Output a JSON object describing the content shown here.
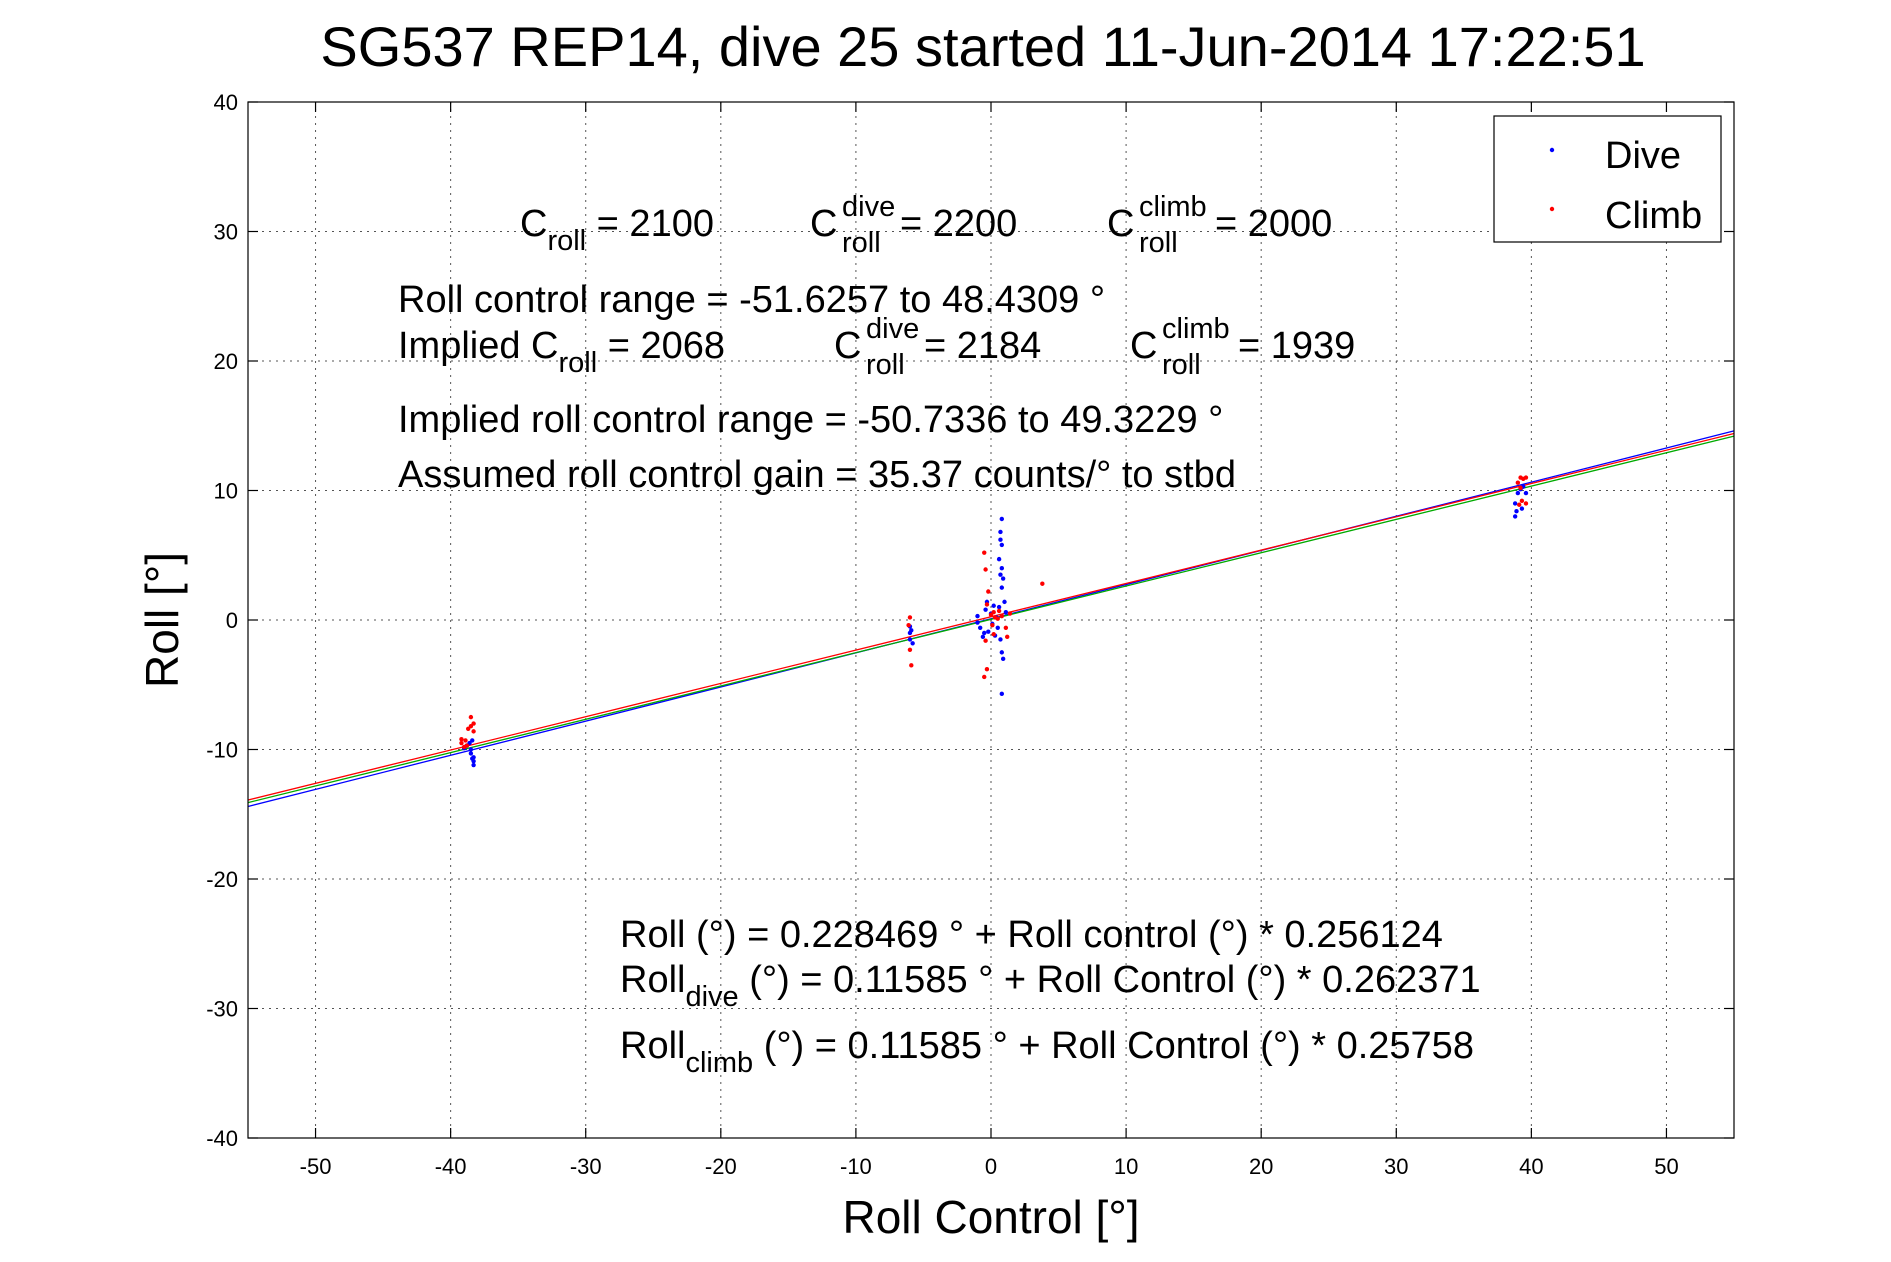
{
  "chart_data": {
    "type": "scatter",
    "title": "SG537 REP14, dive 25 started 11-Jun-2014 17:22:51",
    "xlabel": "Roll Control [°]",
    "ylabel": "Roll [°]",
    "xlim": [
      -55,
      55
    ],
    "ylim": [
      -40,
      40
    ],
    "xticks": [
      -50,
      -40,
      -30,
      -20,
      -10,
      0,
      10,
      20,
      30,
      40,
      50
    ],
    "yticks": [
      -40,
      -30,
      -20,
      -10,
      0,
      10,
      20,
      30,
      40
    ],
    "xtick_labels": [
      "-50",
      "-40",
      "-30",
      "-20",
      "-10",
      "0",
      "10",
      "20",
      "30",
      "40",
      "50"
    ],
    "ytick_labels": [
      "-40",
      "-30",
      "-20",
      "-10",
      "0",
      "10",
      "20",
      "30",
      "40"
    ],
    "grid": true,
    "legend": {
      "placement": "top-right",
      "entries": [
        "Dive",
        "Climb"
      ]
    },
    "series": [
      {
        "name": "Dive",
        "color": "#0000ff",
        "points": [
          [
            -38.5,
            -10.0
          ],
          [
            -38.5,
            -10.3
          ],
          [
            -38.3,
            -10.6
          ],
          [
            -38.3,
            -10.9
          ],
          [
            -38.3,
            -11.2
          ],
          [
            -38.8,
            -9.7
          ],
          [
            -39.0,
            -9.9
          ],
          [
            -38.4,
            -9.3
          ],
          [
            -38.6,
            -9.5
          ],
          [
            -38.4,
            -10.7
          ],
          [
            -6.0,
            -0.5
          ],
          [
            -6.0,
            -1.0
          ],
          [
            -6.0,
            -1.5
          ],
          [
            -5.9,
            -0.8
          ],
          [
            -5.8,
            -1.8
          ],
          [
            -1.0,
            -0.2
          ],
          [
            -1.0,
            0.3
          ],
          [
            -0.8,
            -0.6
          ],
          [
            -0.5,
            -1.0
          ],
          [
            -0.6,
            -1.3
          ],
          [
            -0.4,
            0.8
          ],
          [
            -0.3,
            1.4
          ],
          [
            -0.2,
            -0.9
          ],
          [
            0.0,
            0.5
          ],
          [
            0.1,
            -0.3
          ],
          [
            0.2,
            1.1
          ],
          [
            0.3,
            -1.2
          ],
          [
            0.4,
            0.2
          ],
          [
            0.6,
            1.0
          ],
          [
            0.5,
            -0.6
          ],
          [
            0.8,
            7.8
          ],
          [
            0.7,
            6.8
          ],
          [
            0.7,
            6.2
          ],
          [
            0.8,
            5.8
          ],
          [
            0.6,
            4.7
          ],
          [
            0.8,
            4.0
          ],
          [
            0.7,
            3.5
          ],
          [
            0.9,
            3.2
          ],
          [
            0.8,
            2.5
          ],
          [
            0.7,
            -1.5
          ],
          [
            0.8,
            -2.5
          ],
          [
            0.9,
            -3.0
          ],
          [
            0.8,
            -5.7
          ],
          [
            1.0,
            1.4
          ],
          [
            1.1,
            0.6
          ],
          [
            39.0,
            9.8
          ],
          [
            39.2,
            10.1
          ],
          [
            39.4,
            10.3
          ],
          [
            38.8,
            9.0
          ],
          [
            38.9,
            8.4
          ],
          [
            38.8,
            8.0
          ],
          [
            39.3,
            8.6
          ],
          [
            39.6,
            9.8
          ]
        ]
      },
      {
        "name": "Climb",
        "color": "#ff0000",
        "points": [
          [
            -38.5,
            -7.5
          ],
          [
            -38.3,
            -8.0
          ],
          [
            -38.5,
            -8.2
          ],
          [
            -38.7,
            -8.4
          ],
          [
            -38.3,
            -8.6
          ],
          [
            -39.2,
            -9.2
          ],
          [
            -39.2,
            -9.5
          ],
          [
            -39.0,
            -9.8
          ],
          [
            -38.8,
            -9.7
          ],
          [
            -38.9,
            -9.3
          ],
          [
            -6.0,
            0.2
          ],
          [
            -6.0,
            -2.3
          ],
          [
            -5.9,
            -3.5
          ],
          [
            -6.1,
            -0.4
          ],
          [
            -0.5,
            5.2
          ],
          [
            -0.4,
            3.9
          ],
          [
            -0.2,
            2.2
          ],
          [
            -0.3,
            1.2
          ],
          [
            0.0,
            0.4
          ],
          [
            0.2,
            0.6
          ],
          [
            0.3,
            0.2
          ],
          [
            0.5,
            0.1
          ],
          [
            0.6,
            0.7
          ],
          [
            0.8,
            0.3
          ],
          [
            0.1,
            -0.4
          ],
          [
            0.2,
            -1.1
          ],
          [
            -0.4,
            -1.6
          ],
          [
            -0.3,
            -3.8
          ],
          [
            -0.5,
            -4.4
          ],
          [
            1.2,
            -1.3
          ],
          [
            1.1,
            -0.6
          ],
          [
            1.4,
            0.5
          ],
          [
            3.8,
            2.8
          ],
          [
            39.0,
            10.6
          ],
          [
            39.2,
            11.0
          ],
          [
            39.4,
            10.9
          ],
          [
            39.6,
            11.0
          ],
          [
            39.2,
            10.2
          ],
          [
            39.3,
            9.2
          ],
          [
            39.6,
            9.0
          ],
          [
            39.1,
            8.9
          ]
        ]
      }
    ],
    "fit_lines": [
      {
        "color": "#0000ff",
        "x": [
          -55,
          55
        ],
        "y": [
          -14.4,
          14.6
        ]
      },
      {
        "color": "#ff0000",
        "x": [
          -55,
          55
        ],
        "y": [
          -13.9,
          14.4
        ]
      },
      {
        "color": "#00aa00",
        "x": [
          -55,
          55
        ],
        "y": [
          -14.1,
          14.2
        ]
      }
    ],
    "annotations": {
      "c_roll_label": "C",
      "c_roll_sub": "roll",
      "c_roll_value": " = 2100",
      "c_dive_label": "C",
      "c_dive_sup": "dive",
      "c_dive_sub": "roll",
      "c_dive_value": " = 2200",
      "c_climb_label": "C",
      "c_climb_sup": "climb",
      "c_climb_sub": "roll",
      "c_climb_value": " = 2000",
      "roll_control_range": "Roll control range = -51.6257 to 48.4309 °",
      "implied_c_label": "Implied C",
      "implied_c_sub": "roll",
      "implied_c_value": " = 2068",
      "implied_dive_label": "C",
      "implied_dive_sup": "dive",
      "implied_dive_sub": "roll",
      "implied_dive_value": " = 2184",
      "implied_climb_label": "C",
      "implied_climb_sup": "climb",
      "implied_climb_sub": "roll",
      "implied_climb_value": " = 1939",
      "implied_range": "Implied roll control range = -50.7336 to 49.3229 °",
      "assumed_gain": "Assumed roll control gain = 35.37 counts/° to stbd",
      "fit_all": "Roll (°) = 0.228469 ° + Roll control (°) * 0.256124",
      "fit_dive_label": "Roll",
      "fit_dive_sub": "dive",
      "fit_dive_rest": " (°) = 0.11585 ° + Roll Control (°) * 0.262371",
      "fit_climb_label": "Roll",
      "fit_climb_sub": "climb",
      "fit_climb_rest": " (°) = 0.11585 ° + Roll Control (°) * 0.25758"
    }
  }
}
